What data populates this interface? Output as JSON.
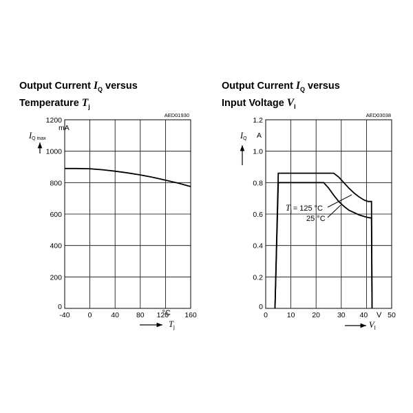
{
  "chart_data": [
    {
      "type": "line",
      "title": {
        "line1": "Output Current",
        "symbol": "I",
        "symbol_sub": "Q",
        "mid": "versus",
        "line2": "Temperature",
        "var": "T",
        "var_sub": "j"
      },
      "code": "AED01930",
      "ylabel": {
        "symbol": "I",
        "sub": "Q max",
        "unit": "mA"
      },
      "xlabel": {
        "symbol": "T",
        "sub": "j"
      },
      "x_unit": "°C",
      "xlim": [
        -40,
        160
      ],
      "ylim": [
        0,
        1200
      ],
      "x_ticks": [
        -40,
        0,
        40,
        80,
        120,
        160
      ],
      "x_tick_labels": [
        "-40",
        "0",
        "40",
        "80",
        "120",
        "160"
      ],
      "y_ticks": [
        0,
        200,
        400,
        600,
        800,
        1000,
        1200
      ],
      "y_tick_labels": [
        "0",
        "200",
        "400",
        "600",
        "800",
        "1000",
        "1200"
      ],
      "grid": true,
      "series": [
        {
          "x": [
            -40,
            -20,
            0,
            20,
            40,
            60,
            80,
            100,
            120,
            140,
            160
          ],
          "y": [
            890,
            890,
            888,
            882,
            873,
            862,
            849,
            834,
            816,
            797,
            775
          ]
        }
      ]
    },
    {
      "type": "line",
      "title": {
        "line1": "Output Current",
        "symbol": "I",
        "symbol_sub": "Q",
        "mid": "versus",
        "line2": "Input Voltage",
        "var": "V",
        "var_sub": "I"
      },
      "code": "AED03038",
      "ylabel": {
        "symbol": "I",
        "sub": "Q",
        "unit": "A"
      },
      "xlabel": {
        "symbol": "V",
        "sub": "I"
      },
      "x_unit": "V",
      "xlim": [
        0,
        50
      ],
      "ylim": [
        0,
        1.2
      ],
      "x_ticks": [
        0,
        10,
        20,
        30,
        40,
        50
      ],
      "x_tick_labels": [
        "0",
        "10",
        "20",
        "30",
        "40",
        "50"
      ],
      "y_ticks": [
        0,
        0.2,
        0.4,
        0.6,
        0.8,
        1.0,
        1.2
      ],
      "y_tick_labels": [
        "0",
        "0.2",
        "0.4",
        "0.6",
        "0.8",
        "1.0",
        "1.2"
      ],
      "grid": true,
      "series_labels": [
        {
          "symbol": "T",
          "sub": "j",
          "text": "= 125 °C"
        },
        {
          "text": "25 °C"
        }
      ],
      "series": [
        {
          "x": [
            3.7,
            5,
            27,
            29,
            31,
            33,
            35,
            37,
            39,
            40.6,
            42,
            42.2
          ],
          "y": [
            0,
            0.86,
            0.86,
            0.835,
            0.8,
            0.765,
            0.735,
            0.71,
            0.69,
            0.68,
            0.68,
            0
          ]
        },
        {
          "x": [
            3.7,
            5,
            23,
            25,
            27,
            29,
            31,
            33,
            35,
            37,
            39,
            40.6,
            42,
            42.2
          ],
          "y": [
            0,
            0.8,
            0.8,
            0.765,
            0.72,
            0.68,
            0.65,
            0.625,
            0.61,
            0.595,
            0.585,
            0.578,
            0.575,
            0
          ]
        }
      ]
    }
  ]
}
